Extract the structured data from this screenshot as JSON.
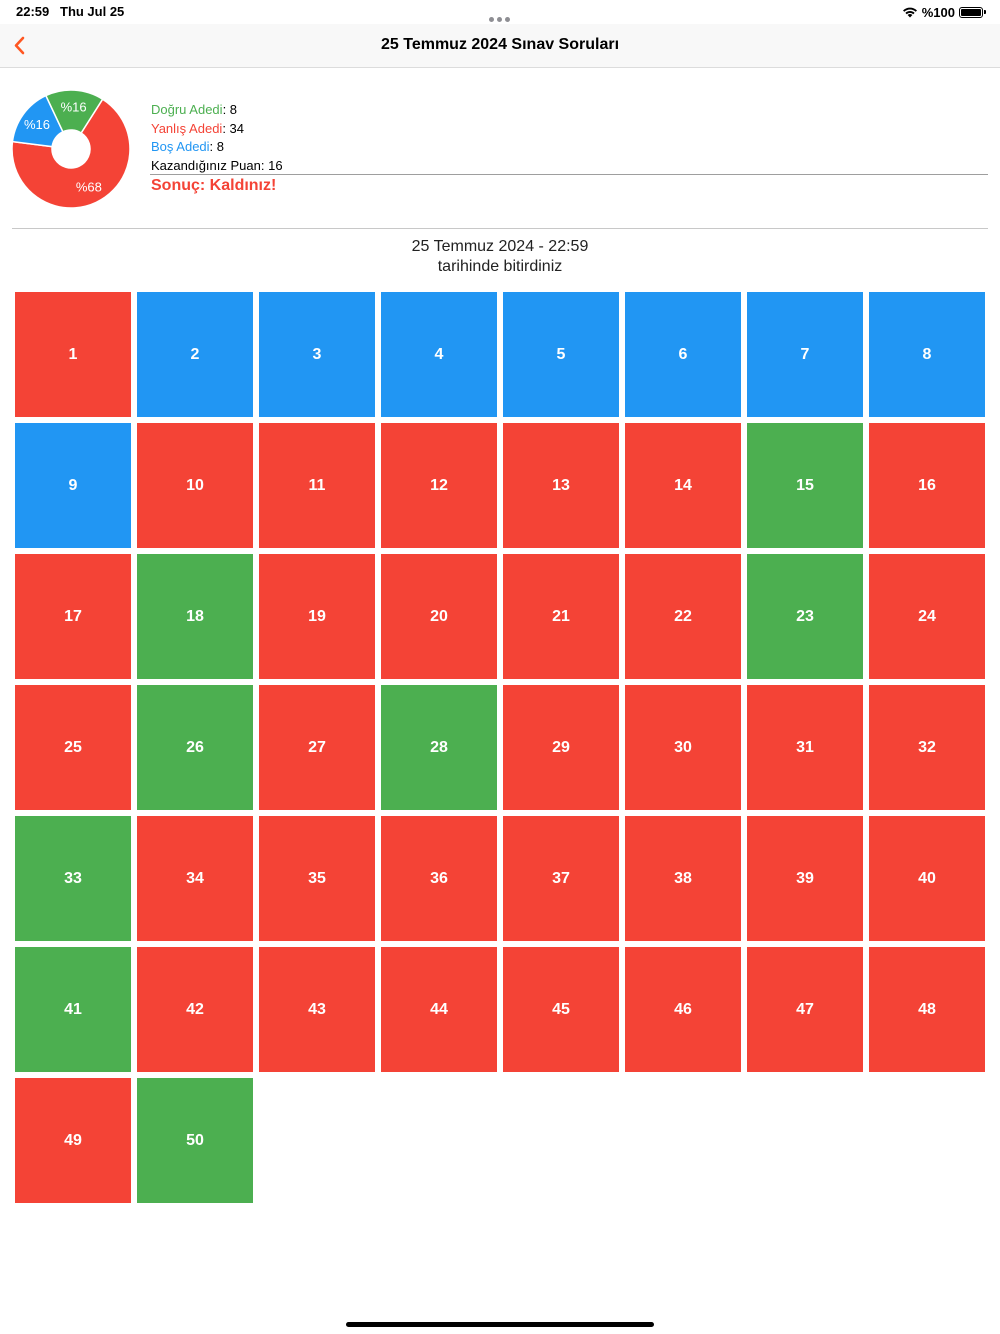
{
  "status_bar": {
    "time": "22:59",
    "date": "Thu Jul 25",
    "battery_text": "%100"
  },
  "nav": {
    "title": "25 Temmuz 2024 Sınav Soruları",
    "back_icon": "chevron-left-icon"
  },
  "colors": {
    "correct": "#4caf50",
    "wrong": "#f44336",
    "empty": "#2196f3",
    "accent": "#ff5722"
  },
  "chart_data": {
    "type": "pie",
    "categories": [
      "Yanlış",
      "Boş",
      "Doğru"
    ],
    "values": [
      68,
      16,
      16
    ],
    "labels": [
      "%68",
      "%16",
      "%16"
    ],
    "colors": [
      "#f44336",
      "#2196f3",
      "#4caf50"
    ]
  },
  "stats": {
    "correct_label": "Doğru Adedi",
    "correct_value": "8",
    "wrong_label": "Yanlış Adedi",
    "wrong_value": "34",
    "empty_label": "Boş Adedi",
    "empty_value": "8",
    "score_label": "Kazandığınız Puan",
    "score_value": "16",
    "result": "Sonuç: Kaldınız!"
  },
  "finish": {
    "line1": "25 Temmuz 2024 - 22:59",
    "line2": "tarihinde bitirdiniz"
  },
  "questions": [
    {
      "n": "1",
      "s": "wrong"
    },
    {
      "n": "2",
      "s": "empty"
    },
    {
      "n": "3",
      "s": "empty"
    },
    {
      "n": "4",
      "s": "empty"
    },
    {
      "n": "5",
      "s": "empty"
    },
    {
      "n": "6",
      "s": "empty"
    },
    {
      "n": "7",
      "s": "empty"
    },
    {
      "n": "8",
      "s": "empty"
    },
    {
      "n": "9",
      "s": "empty"
    },
    {
      "n": "10",
      "s": "wrong"
    },
    {
      "n": "11",
      "s": "wrong"
    },
    {
      "n": "12",
      "s": "wrong"
    },
    {
      "n": "13",
      "s": "wrong"
    },
    {
      "n": "14",
      "s": "wrong"
    },
    {
      "n": "15",
      "s": "correct"
    },
    {
      "n": "16",
      "s": "wrong"
    },
    {
      "n": "17",
      "s": "wrong"
    },
    {
      "n": "18",
      "s": "correct"
    },
    {
      "n": "19",
      "s": "wrong"
    },
    {
      "n": "20",
      "s": "wrong"
    },
    {
      "n": "21",
      "s": "wrong"
    },
    {
      "n": "22",
      "s": "wrong"
    },
    {
      "n": "23",
      "s": "correct"
    },
    {
      "n": "24",
      "s": "wrong"
    },
    {
      "n": "25",
      "s": "wrong"
    },
    {
      "n": "26",
      "s": "correct"
    },
    {
      "n": "27",
      "s": "wrong"
    },
    {
      "n": "28",
      "s": "correct"
    },
    {
      "n": "29",
      "s": "wrong"
    },
    {
      "n": "30",
      "s": "wrong"
    },
    {
      "n": "31",
      "s": "wrong"
    },
    {
      "n": "32",
      "s": "wrong"
    },
    {
      "n": "33",
      "s": "correct"
    },
    {
      "n": "34",
      "s": "wrong"
    },
    {
      "n": "35",
      "s": "wrong"
    },
    {
      "n": "36",
      "s": "wrong"
    },
    {
      "n": "37",
      "s": "wrong"
    },
    {
      "n": "38",
      "s": "wrong"
    },
    {
      "n": "39",
      "s": "wrong"
    },
    {
      "n": "40",
      "s": "wrong"
    },
    {
      "n": "41",
      "s": "correct"
    },
    {
      "n": "42",
      "s": "wrong"
    },
    {
      "n": "43",
      "s": "wrong"
    },
    {
      "n": "44",
      "s": "wrong"
    },
    {
      "n": "45",
      "s": "wrong"
    },
    {
      "n": "46",
      "s": "wrong"
    },
    {
      "n": "47",
      "s": "wrong"
    },
    {
      "n": "48",
      "s": "wrong"
    },
    {
      "n": "49",
      "s": "wrong"
    },
    {
      "n": "50",
      "s": "correct"
    }
  ]
}
